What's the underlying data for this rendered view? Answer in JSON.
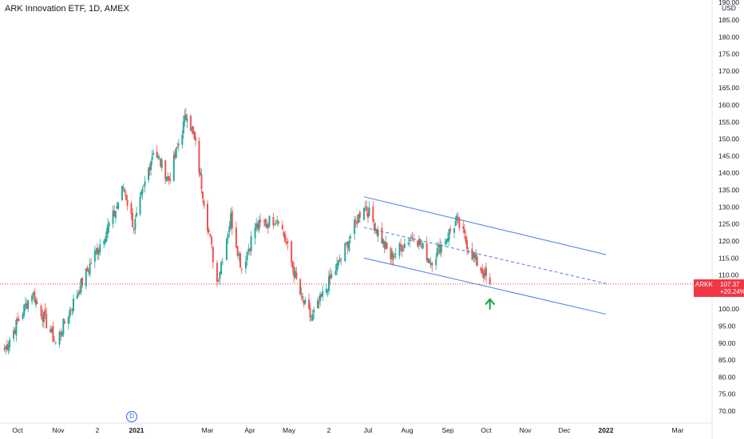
{
  "header": {
    "title": "ARK Innovation ETF, 1D, AMEX"
  },
  "axis": {
    "currency": "USD",
    "top_partial_label": "190.00",
    "price_labels": [
      "185.00",
      "180.00",
      "175.00",
      "170.00",
      "165.00",
      "160.00",
      "155.00",
      "150.00",
      "145.00",
      "140.00",
      "135.00",
      "130.00",
      "125.00",
      "120.00",
      "115.00",
      "110.00",
      "105.00",
      "100.00",
      "95.00",
      "90.00",
      "85.00",
      "80.00",
      "75.00",
      "70.00"
    ],
    "date_labels": [
      "Oct",
      "Nov",
      "2",
      "2021",
      "Mar",
      "Apr",
      "May",
      "2",
      "Jul",
      "Aug",
      "Sep",
      "Oct",
      "Nov",
      "Dec",
      "2022",
      "Mar"
    ]
  },
  "price_box": {
    "symbol": "ARKK",
    "price": "107.37",
    "change": "+20.24%"
  },
  "marker": {
    "label": "D"
  },
  "colors": {
    "up": "#26a69a",
    "down": "#ef5350",
    "channel": "#4a7ae8",
    "arrow": "#21a84a",
    "last_price": "#f23645"
  },
  "chart_data": {
    "type": "candlestick",
    "title": "ARK Innovation ETF, 1D, AMEX",
    "y_unit": "USD",
    "ylim": [
      67,
      190
    ],
    "x_range": [
      "2020-09-21",
      "2022-03-31"
    ],
    "x_ticks": [
      "2020-10-01",
      "2020-11-01",
      "2020-12-02",
      "2021-01-01",
      "2021-03-01",
      "2021-04-01",
      "2021-05-01",
      "2021-06-02",
      "2021-07-01",
      "2021-08-01",
      "2021-09-01",
      "2021-10-01",
      "2021-11-01",
      "2021-12-01",
      "2022-01-01",
      "2022-03-01"
    ],
    "last_price": 107.37,
    "change_pct": 20.24,
    "approx_path": [
      {
        "date": "2020-09-21",
        "close": 88
      },
      {
        "date": "2020-10-12",
        "close": 105
      },
      {
        "date": "2020-10-30",
        "close": 90
      },
      {
        "date": "2020-11-20",
        "close": 108
      },
      {
        "date": "2020-12-15",
        "close": 128
      },
      {
        "date": "2020-12-22",
        "close": 136
      },
      {
        "date": "2020-12-30",
        "close": 124
      },
      {
        "date": "2021-01-15",
        "close": 147
      },
      {
        "date": "2021-01-28",
        "close": 138
      },
      {
        "date": "2021-02-12",
        "close": 158
      },
      {
        "date": "2021-02-19",
        "close": 148
      },
      {
        "date": "2021-02-26",
        "close": 132
      },
      {
        "date": "2021-03-08",
        "close": 108
      },
      {
        "date": "2021-03-18",
        "close": 127
      },
      {
        "date": "2021-03-26",
        "close": 112
      },
      {
        "date": "2021-04-05",
        "close": 124
      },
      {
        "date": "2021-04-23",
        "close": 127
      },
      {
        "date": "2021-05-11",
        "close": 103
      },
      {
        "date": "2021-05-19",
        "close": 97
      },
      {
        "date": "2021-06-10",
        "close": 114
      },
      {
        "date": "2021-06-28",
        "close": 131
      },
      {
        "date": "2021-07-19",
        "close": 115
      },
      {
        "date": "2021-08-06",
        "close": 122
      },
      {
        "date": "2021-08-19",
        "close": 114
      },
      {
        "date": "2021-09-08",
        "close": 126
      },
      {
        "date": "2021-09-20",
        "close": 116
      },
      {
        "date": "2021-10-04",
        "close": 107.37
      }
    ],
    "annotations": {
      "channel_upper": {
        "start": {
          "date": "2021-06-28",
          "price": 133
        },
        "end": {
          "date": "2022-01-01",
          "price": 116
        }
      },
      "channel_mid": {
        "start": {
          "date": "2021-06-28",
          "price": 124
        },
        "end": {
          "date": "2022-01-01",
          "price": 107.5
        }
      },
      "channel_lower": {
        "start": {
          "date": "2021-06-28",
          "price": 115
        },
        "end": {
          "date": "2022-01-01",
          "price": 98.5
        }
      },
      "arrow_up": {
        "date": "2021-10-04",
        "price": 101.5
      }
    }
  }
}
